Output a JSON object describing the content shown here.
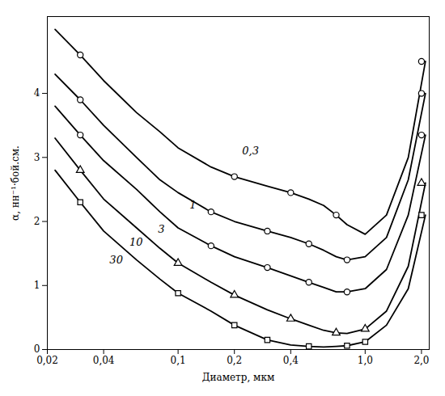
{
  "chart_data": {
    "type": "line",
    "xlabel": "Диаметр, мкм",
    "ylabel": "α, нн⁻¹·бой.см.",
    "log": "x",
    "xlim": [
      0.02,
      2.2
    ],
    "ylim": [
      0,
      5.2
    ],
    "xticks": [
      {
        "value": 0.02,
        "label": "0,02"
      },
      {
        "value": 0.04,
        "label": "0,04"
      },
      {
        "value": 0.1,
        "label": "0,1"
      },
      {
        "value": 0.2,
        "label": "0,2"
      },
      {
        "value": 0.4,
        "label": "0,4"
      },
      {
        "value": 1.0,
        "label": "1,0"
      },
      {
        "value": 2.0,
        "label": "2,0"
      }
    ],
    "yticks": [
      0,
      1,
      2,
      3,
      4
    ],
    "grid": false,
    "color": "#000000",
    "series": [
      {
        "name": "0,3",
        "x": [
          0.022,
          0.03,
          0.04,
          0.06,
          0.08,
          0.1,
          0.15,
          0.2,
          0.3,
          0.4,
          0.5,
          0.6,
          0.7,
          0.8,
          1.0,
          1.3,
          1.7,
          2.1
        ],
        "values": [
          5.0,
          4.6,
          4.2,
          3.7,
          3.4,
          3.15,
          2.85,
          2.7,
          2.55,
          2.45,
          2.35,
          2.25,
          2.1,
          1.95,
          1.8,
          2.1,
          3.0,
          4.5
        ],
        "marker": "circle",
        "marker_x": [
          0.03,
          0.2,
          0.4,
          0.7,
          2.0
        ],
        "marker_y": [
          4.6,
          2.7,
          2.45,
          2.1,
          4.5
        ],
        "label_x": 0.22,
        "label_y": 3.05
      },
      {
        "name": "1",
        "x": [
          0.022,
          0.03,
          0.04,
          0.06,
          0.08,
          0.1,
          0.15,
          0.2,
          0.3,
          0.4,
          0.5,
          0.6,
          0.7,
          0.8,
          1.0,
          1.3,
          1.7,
          2.1
        ],
        "values": [
          4.3,
          3.9,
          3.5,
          3.0,
          2.65,
          2.45,
          2.15,
          2.0,
          1.85,
          1.75,
          1.65,
          1.55,
          1.45,
          1.4,
          1.45,
          1.75,
          2.65,
          4.0
        ],
        "marker": "circle",
        "marker_x": [
          0.03,
          0.15,
          0.3,
          0.5,
          0.8,
          2.0
        ],
        "marker_y": [
          3.9,
          2.15,
          1.85,
          1.65,
          1.4,
          4.0
        ],
        "label_x": 0.115,
        "label_y": 2.2
      },
      {
        "name": "3",
        "x": [
          0.022,
          0.03,
          0.04,
          0.06,
          0.08,
          0.1,
          0.15,
          0.2,
          0.3,
          0.4,
          0.5,
          0.6,
          0.7,
          0.8,
          1.0,
          1.3,
          1.7,
          2.1
        ],
        "values": [
          3.8,
          3.35,
          2.95,
          2.5,
          2.15,
          1.9,
          1.62,
          1.45,
          1.28,
          1.15,
          1.05,
          0.97,
          0.9,
          0.9,
          0.95,
          1.25,
          2.1,
          3.35
        ],
        "marker": "circle",
        "marker_x": [
          0.03,
          0.15,
          0.3,
          0.5,
          0.8,
          2.0
        ],
        "marker_y": [
          3.35,
          1.62,
          1.28,
          1.05,
          0.9,
          3.35
        ],
        "label_x": 0.078,
        "label_y": 1.82
      },
      {
        "name": "10",
        "x": [
          0.022,
          0.03,
          0.04,
          0.06,
          0.08,
          0.1,
          0.15,
          0.2,
          0.3,
          0.4,
          0.5,
          0.6,
          0.7,
          0.8,
          1.0,
          1.3,
          1.7,
          2.1
        ],
        "values": [
          3.3,
          2.8,
          2.35,
          1.9,
          1.58,
          1.35,
          1.05,
          0.85,
          0.62,
          0.48,
          0.38,
          0.3,
          0.26,
          0.25,
          0.32,
          0.6,
          1.3,
          2.6
        ],
        "marker": "triangle",
        "marker_x": [
          0.03,
          0.1,
          0.2,
          0.4,
          0.7,
          1.0,
          2.0
        ],
        "marker_y": [
          2.8,
          1.35,
          0.85,
          0.48,
          0.26,
          0.32,
          2.6
        ],
        "label_x": 0.055,
        "label_y": 1.62
      },
      {
        "name": "30",
        "x": [
          0.022,
          0.03,
          0.04,
          0.06,
          0.08,
          0.1,
          0.15,
          0.2,
          0.3,
          0.4,
          0.5,
          0.6,
          0.7,
          0.8,
          1.0,
          1.3,
          1.7,
          2.1
        ],
        "values": [
          2.8,
          2.3,
          1.85,
          1.4,
          1.1,
          0.88,
          0.6,
          0.38,
          0.15,
          0.07,
          0.05,
          0.04,
          0.05,
          0.06,
          0.12,
          0.38,
          0.95,
          2.1
        ],
        "marker": "square",
        "marker_x": [
          0.03,
          0.1,
          0.2,
          0.3,
          0.5,
          0.8,
          1.0,
          2.0
        ],
        "marker_y": [
          2.3,
          0.88,
          0.38,
          0.15,
          0.05,
          0.06,
          0.12,
          2.1
        ],
        "label_x": 0.043,
        "label_y": 1.35
      }
    ]
  }
}
